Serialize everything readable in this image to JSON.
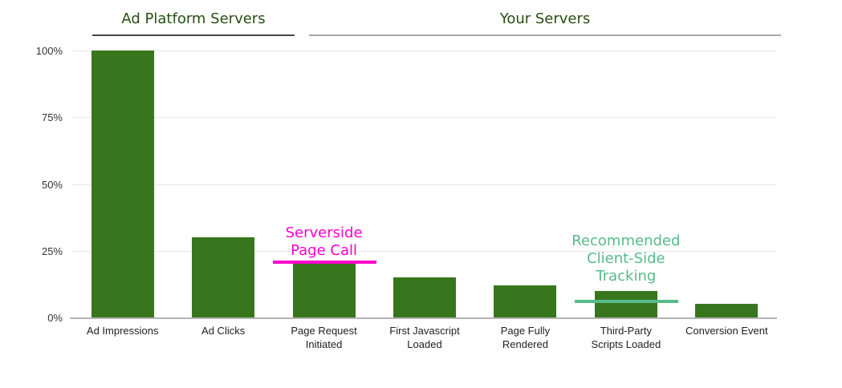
{
  "page": {
    "background": "#ffffff"
  },
  "section_headers": [
    {
      "label": "Ad Platform Servers",
      "text_color": "#274e13",
      "underline_color": "#474747",
      "covers_categories": [
        "Ad Impressions",
        "Ad Clicks"
      ]
    },
    {
      "label": "Your Servers",
      "text_color": "#274e13",
      "underline_color": "#a9a9a9",
      "covers_categories": [
        "Page Request Initiated",
        "First Javascript Loaded",
        "Page Fully Rendered",
        "Third-Party Scripts Loaded",
        "Conversion Event"
      ]
    }
  ],
  "chart_data": {
    "type": "bar",
    "title": "",
    "categories": [
      "Ad Impressions",
      "Ad Clicks",
      "Page Request Initiated",
      "First Javascript Loaded",
      "Page Fully Rendered",
      "Third-Party Scripts Loaded",
      "Conversion Event"
    ],
    "category_display": [
      "Ad Impressions",
      "Ad Clicks",
      "Page Request\nInitiated",
      "First Javascript\nLoaded",
      "Page Fully\nRendered",
      "Third-Party\nScripts Loaded",
      "Conversion Event"
    ],
    "values": [
      100,
      30,
      20,
      15,
      12,
      10,
      5
    ],
    "unit": "%",
    "bar_color": "#38761d",
    "ylim": [
      0,
      100
    ],
    "yticks": [
      {
        "value": 100,
        "label": "100%"
      },
      {
        "value": 75,
        "label": "75%"
      },
      {
        "value": 50,
        "label": "50%"
      },
      {
        "value": 25,
        "label": "25%"
      },
      {
        "value": 0,
        "label": "0%"
      }
    ],
    "grid": true,
    "legend": "none"
  },
  "annotations": [
    {
      "name": "serverside-page-call",
      "lines": [
        "Serverside",
        "Page Call"
      ],
      "color": "#ff00cc",
      "line_value": 20,
      "attached_category": "Page Request Initiated"
    },
    {
      "name": "recommended-client-side-tracking",
      "lines": [
        "Recommended",
        "Client-Side",
        "Tracking"
      ],
      "color": "#57bb8a",
      "line_value": 6,
      "attached_category": "Third-Party Scripts Loaded"
    }
  ]
}
